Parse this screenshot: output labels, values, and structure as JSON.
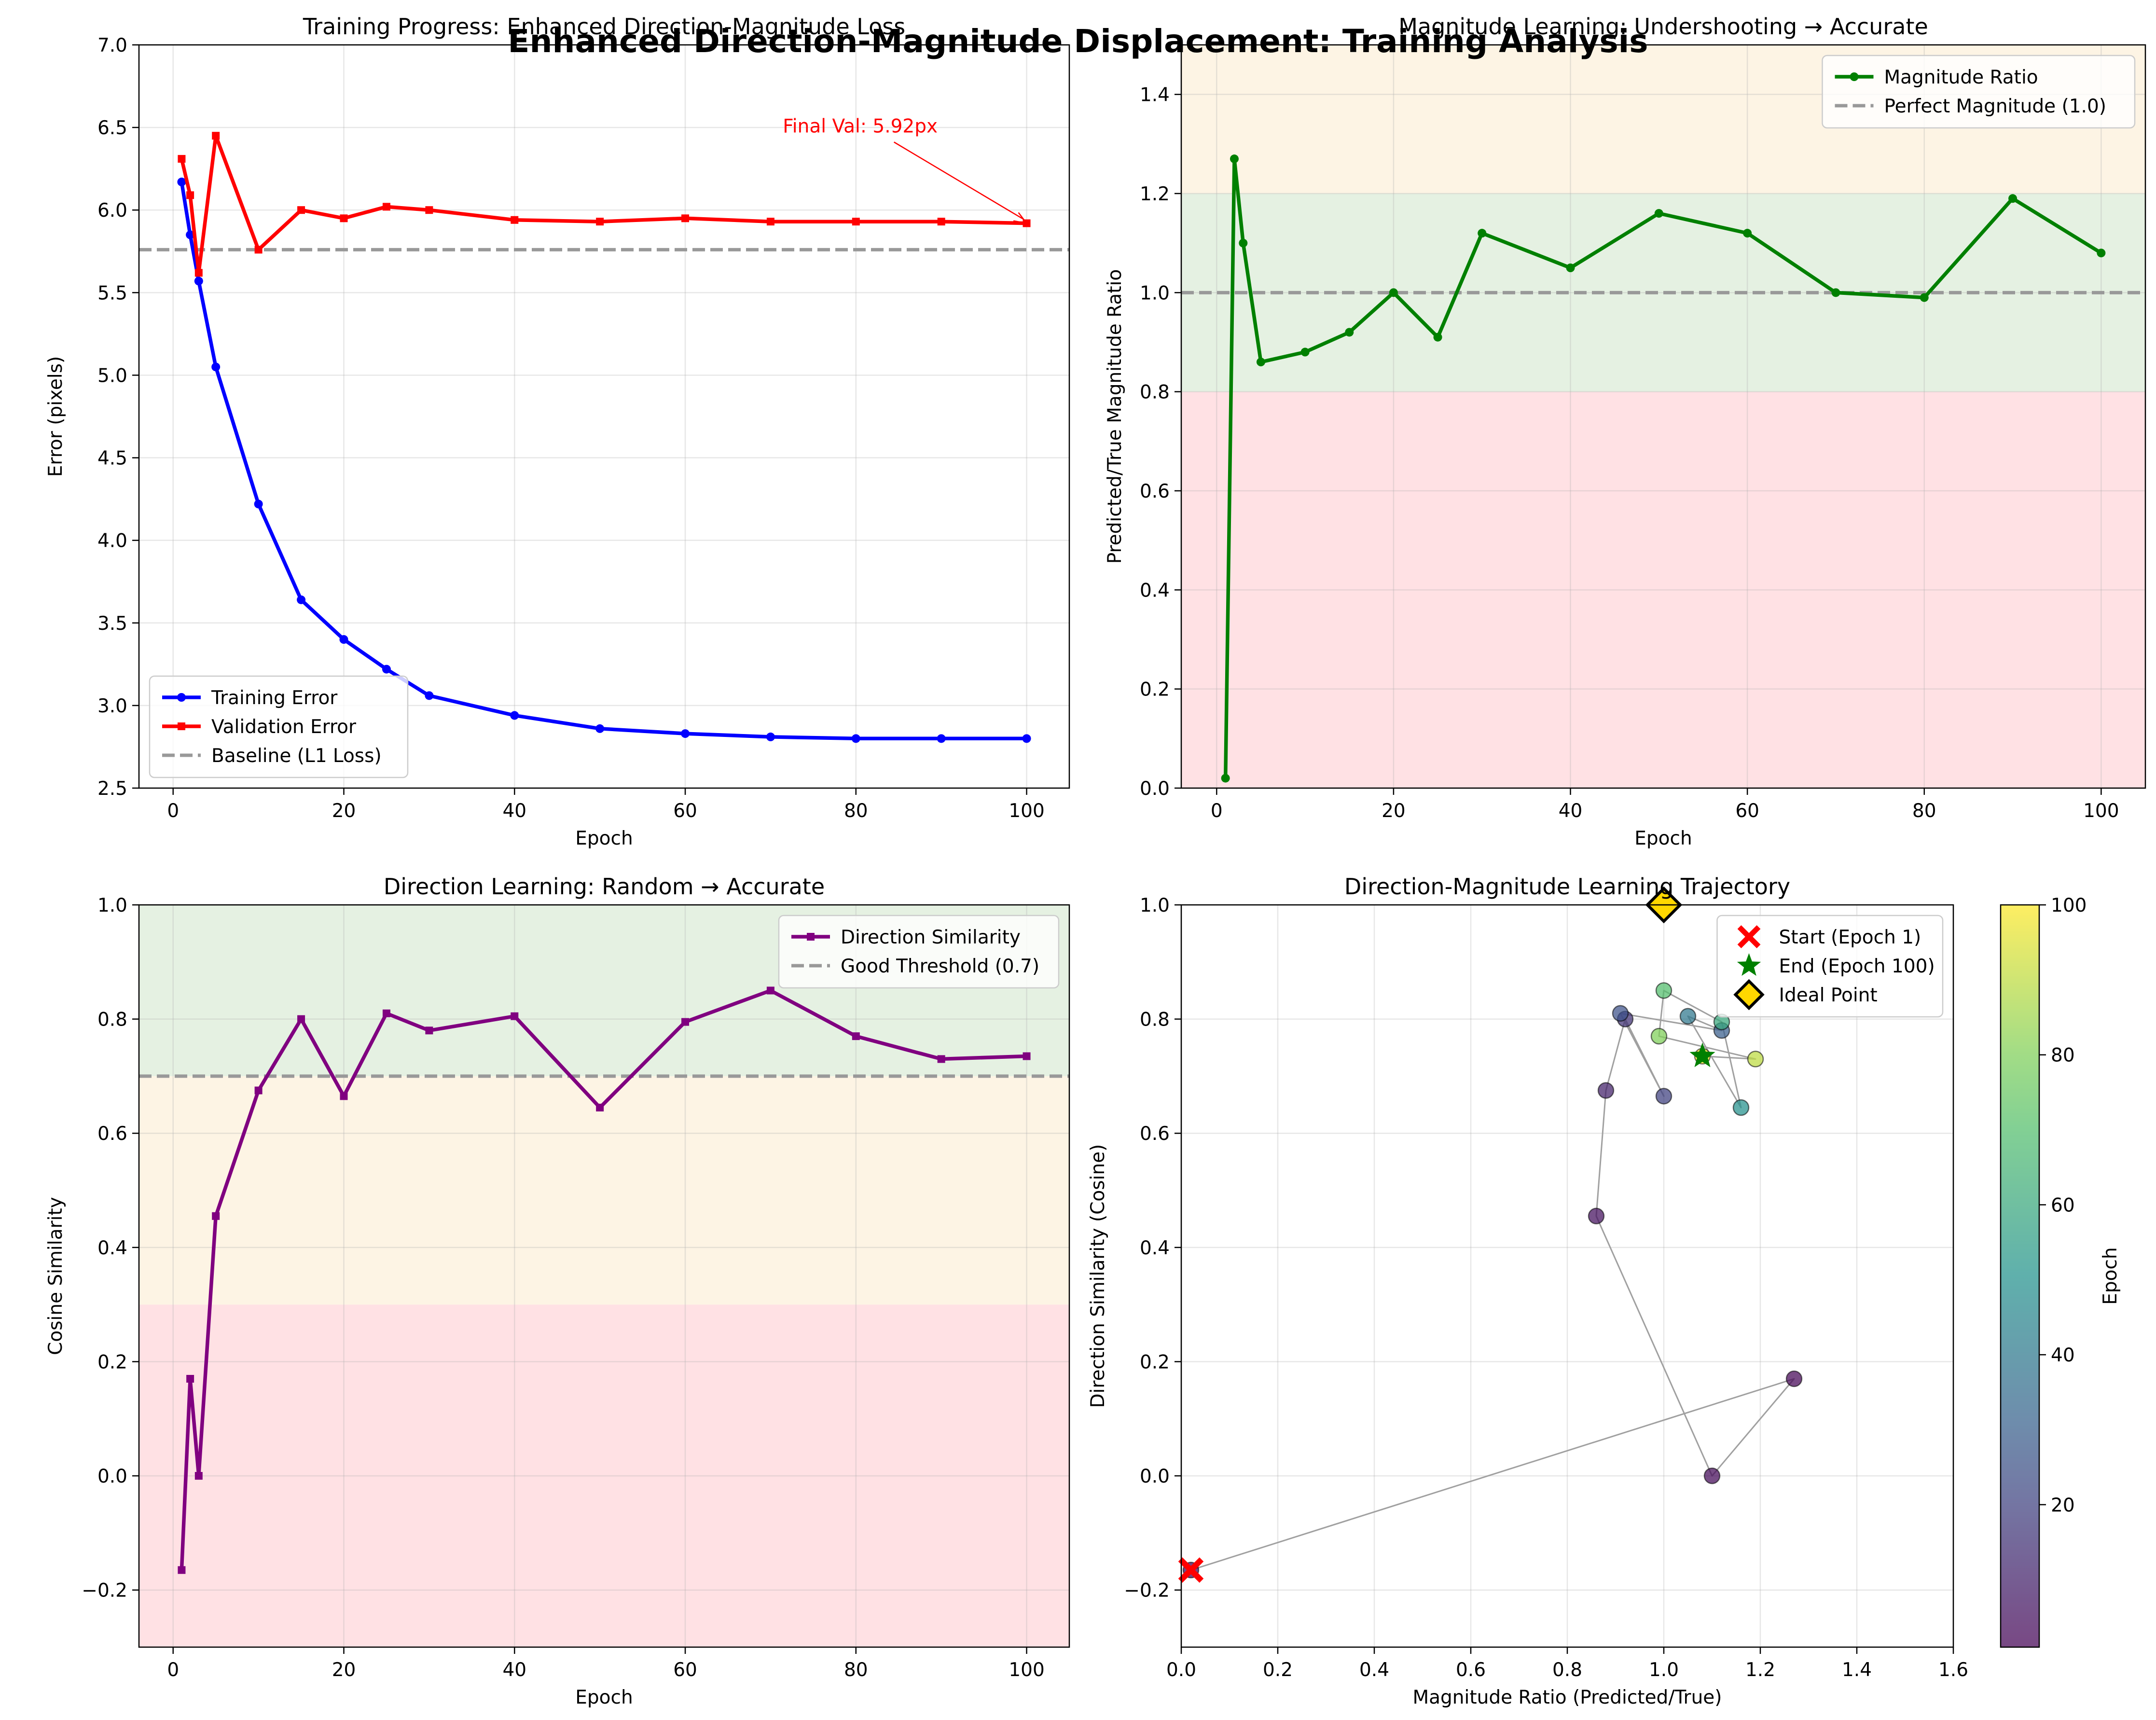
{
  "suptitle": "Enhanced Direction-Magnitude Displacement: Training Analysis",
  "colors": {
    "training": "#0000ff",
    "validation": "#ff0000",
    "baseline": "#999999",
    "magnitude": "#008000",
    "direction": "#800080",
    "zone_green": "#e5f1e2",
    "zone_orange": "#fdf4e4",
    "zone_red": "#ffe1e4",
    "ideal": "#ffd700",
    "trajectory_line": "#a0a0a0"
  },
  "epochs": [
    1,
    2,
    3,
    5,
    10,
    15,
    20,
    25,
    30,
    40,
    50,
    60,
    70,
    80,
    90,
    100
  ],
  "chart_data": [
    {
      "type": "line",
      "title": "Training Progress: Enhanced Direction-Magnitude Loss",
      "xlabel": "Epoch",
      "ylabel": "Error (pixels)",
      "xlim": [
        -4,
        105
      ],
      "ylim": [
        2.5,
        7.0
      ],
      "xticks": [
        0,
        20,
        40,
        60,
        80,
        100
      ],
      "yticks": [
        2.5,
        3.0,
        3.5,
        4.0,
        4.5,
        5.0,
        5.5,
        6.0,
        6.5,
        7.0
      ],
      "ytick_labels": [
        "2.5",
        "3.0",
        "3.5",
        "4.0",
        "4.5",
        "5.0",
        "5.5",
        "6.0",
        "6.5",
        "7.0"
      ],
      "grid": true,
      "legend_position": "lower-left",
      "series": [
        {
          "name": "Training Error",
          "marker": "circle",
          "values": [
            6.17,
            5.85,
            5.57,
            5.05,
            4.22,
            3.64,
            3.4,
            3.22,
            3.06,
            2.94,
            2.86,
            2.83,
            2.81,
            2.8,
            2.8,
            2.8
          ]
        },
        {
          "name": "Validation Error",
          "marker": "square",
          "values": [
            6.31,
            6.09,
            5.62,
            6.45,
            5.76,
            6.0,
            5.95,
            6.02,
            6.0,
            5.94,
            5.93,
            5.95,
            5.93,
            5.93,
            5.93,
            5.92
          ]
        }
      ],
      "reference_line": {
        "name": "Baseline (L1 Loss)",
        "y": 5.76
      },
      "annotation": {
        "text": "Final Val: 5.92px",
        "x": 100,
        "y": 5.92,
        "text_x": 80.5,
        "text_y": 6.47
      }
    },
    {
      "type": "line",
      "title": "Magnitude Learning: Undershooting → Accurate",
      "xlabel": "Epoch",
      "ylabel": "Predicted/True Magnitude Ratio",
      "xlim": [
        -4,
        105
      ],
      "ylim": [
        0,
        1.5
      ],
      "xticks": [
        0,
        20,
        40,
        60,
        80,
        100
      ],
      "yticks": [
        0.0,
        0.2,
        0.4,
        0.6,
        0.8,
        1.0,
        1.2,
        1.4
      ],
      "ytick_labels": [
        "0.0",
        "0.2",
        "0.4",
        "0.6",
        "0.8",
        "1.0",
        "1.2",
        "1.4"
      ],
      "grid": true,
      "legend_position": "top-right",
      "bands": [
        {
          "from": 0,
          "to": 0.8,
          "color": "red"
        },
        {
          "from": 0.8,
          "to": 1.2,
          "color": "green"
        },
        {
          "from": 1.2,
          "to": 1.5,
          "color": "orange"
        }
      ],
      "series": [
        {
          "name": "Magnitude Ratio",
          "marker": "circle",
          "values": [
            0.02,
            1.27,
            1.1,
            0.86,
            0.88,
            0.92,
            1.0,
            0.91,
            1.12,
            1.05,
            1.16,
            1.12,
            1.0,
            0.99,
            1.19,
            1.08
          ]
        }
      ],
      "reference_line": {
        "name": "Perfect Magnitude (1.0)",
        "y": 1.0
      }
    },
    {
      "type": "line",
      "title": "Direction Learning: Random → Accurate",
      "xlabel": "Epoch",
      "ylabel": "Cosine Similarity",
      "xlim": [
        -4,
        105
      ],
      "ylim": [
        -0.3,
        1.0
      ],
      "xticks": [
        0,
        20,
        40,
        60,
        80,
        100
      ],
      "yticks": [
        -0.2,
        0.0,
        0.2,
        0.4,
        0.6,
        0.8,
        1.0
      ],
      "ytick_labels": [
        "−0.2",
        "0.0",
        "0.2",
        "0.4",
        "0.6",
        "0.8",
        "1.0"
      ],
      "grid": true,
      "legend_position": "top-right",
      "bands": [
        {
          "from": -0.3,
          "to": 0.3,
          "color": "red"
        },
        {
          "from": 0.3,
          "to": 0.7,
          "color": "orange"
        },
        {
          "from": 0.7,
          "to": 1.0,
          "color": "green"
        }
      ],
      "series": [
        {
          "name": "Direction Similarity",
          "marker": "square",
          "values": [
            -0.165,
            0.17,
            0.0,
            0.455,
            0.675,
            0.8,
            0.665,
            0.81,
            0.78,
            0.805,
            0.645,
            0.795,
            0.85,
            0.77,
            0.73,
            0.735
          ]
        }
      ],
      "reference_line": {
        "name": "Good Threshold (0.7)",
        "y": 0.7
      }
    },
    {
      "type": "scatter",
      "title": "Direction-Magnitude Learning Trajectory",
      "xlabel": "Magnitude Ratio (Predicted/True)",
      "ylabel": "Direction Similarity (Cosine)",
      "xlim": [
        0,
        1.6
      ],
      "ylim": [
        -0.3,
        1.0
      ],
      "xticks": [
        0.0,
        0.2,
        0.4,
        0.6,
        0.8,
        1.0,
        1.2,
        1.4,
        1.6
      ],
      "xtick_labels": [
        "0.0",
        "0.2",
        "0.4",
        "0.6",
        "0.8",
        "1.0",
        "1.2",
        "1.4",
        "1.6"
      ],
      "yticks": [
        -0.2,
        0.0,
        0.2,
        0.4,
        0.6,
        0.8,
        1.0
      ],
      "ytick_labels": [
        "−0.2",
        "0.0",
        "0.2",
        "0.4",
        "0.6",
        "0.8",
        "1.0"
      ],
      "grid": true,
      "legend_position": "top-right",
      "colorbar": {
        "label": "Epoch",
        "range": [
          1,
          100
        ],
        "ticks": [
          20,
          40,
          60,
          80,
          100
        ],
        "colormap": "viridis"
      },
      "points": [
        {
          "epoch": 1,
          "x": 0.02,
          "y": -0.165
        },
        {
          "epoch": 2,
          "x": 1.27,
          "y": 0.17
        },
        {
          "epoch": 3,
          "x": 1.1,
          "y": 0.0
        },
        {
          "epoch": 5,
          "x": 0.86,
          "y": 0.455
        },
        {
          "epoch": 10,
          "x": 0.88,
          "y": 0.675
        },
        {
          "epoch": 15,
          "x": 0.92,
          "y": 0.8
        },
        {
          "epoch": 20,
          "x": 1.0,
          "y": 0.665
        },
        {
          "epoch": 25,
          "x": 0.91,
          "y": 0.81
        },
        {
          "epoch": 30,
          "x": 1.12,
          "y": 0.78
        },
        {
          "epoch": 40,
          "x": 1.05,
          "y": 0.805
        },
        {
          "epoch": 50,
          "x": 1.16,
          "y": 0.645
        },
        {
          "epoch": 60,
          "x": 1.12,
          "y": 0.795
        },
        {
          "epoch": 70,
          "x": 1.0,
          "y": 0.85
        },
        {
          "epoch": 80,
          "x": 0.99,
          "y": 0.77
        },
        {
          "epoch": 90,
          "x": 1.19,
          "y": 0.73
        },
        {
          "epoch": 100,
          "x": 1.08,
          "y": 0.735
        }
      ],
      "markers": [
        {
          "name": "Start (Epoch 1)",
          "symbol": "x",
          "x": 0.02,
          "y": -0.165
        },
        {
          "name": "End (Epoch 100)",
          "symbol": "star",
          "x": 1.08,
          "y": 0.735
        },
        {
          "name": "Ideal Point",
          "symbol": "diamond",
          "x": 1.0,
          "y": 1.0
        }
      ]
    }
  ]
}
